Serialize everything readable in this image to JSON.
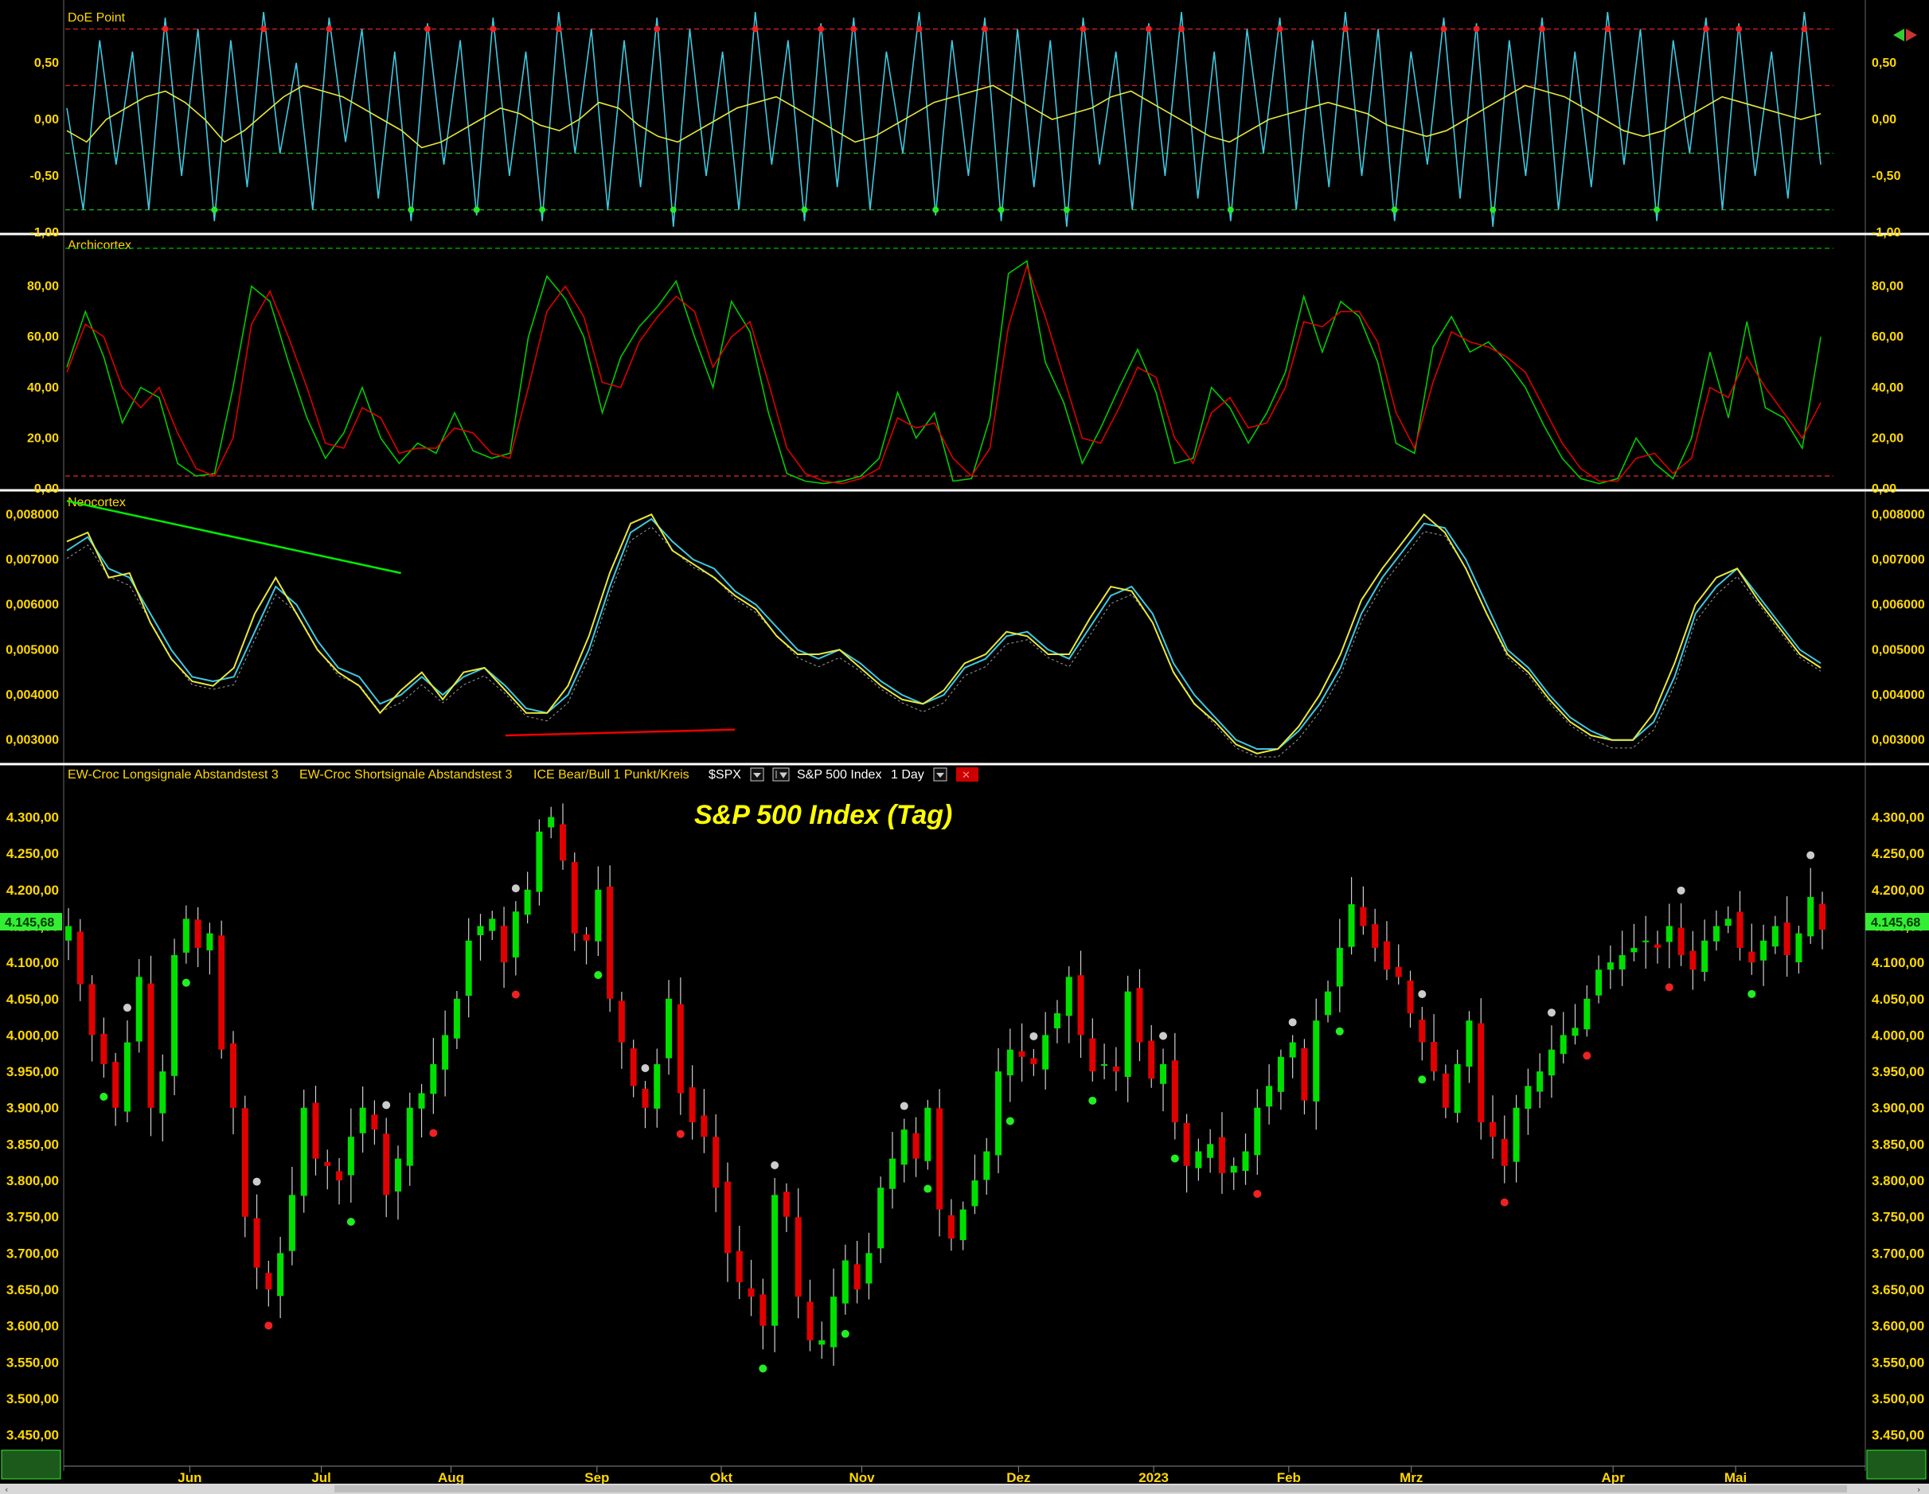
{
  "colors": {
    "background": "#000000",
    "axis_text": "#ffd800",
    "bull": "#00e000",
    "bear": "#e00000",
    "separator": "#ffffff",
    "cyan": "#3fc8e0",
    "yellow": "#e8e83a",
    "price_tag": "#33ee33"
  },
  "toolbar": {
    "series_label": "EW-Croc Longsignale Abstandstest 3",
    "short_label": "EW-Croc Shortsignale Abstandstest 3",
    "ice_label": "ICE Bear/Bull 1 Punkt/Kreis",
    "symbol": "$SPX",
    "symbol_name": "S&P 500 Index",
    "interval": "1 Day"
  },
  "chart_data": [
    {
      "type": "line",
      "title": "DoE Point",
      "ylim": [
        -1.0,
        1.0
      ],
      "yticks": [
        "0,50",
        "0,00",
        "-0,50",
        "-1,00"
      ],
      "ytick_values": [
        0.5,
        0.0,
        -0.5,
        -1.0
      ],
      "ref_lines": [
        0.8,
        0.3,
        -0.3,
        -0.8
      ],
      "series": [
        {
          "color": "#3fc8e0",
          "values": [
            0.1,
            -0.8,
            0.7,
            -0.4,
            0.6,
            -0.8,
            0.9,
            -0.5,
            0.8,
            -0.9,
            0.7,
            -0.6,
            0.95,
            -0.3,
            0.5,
            -0.8,
            0.9,
            -0.2,
            0.8,
            -0.7,
            0.6,
            -0.9,
            0.85,
            -0.4,
            0.7,
            -0.85,
            0.9,
            -0.5,
            0.6,
            -0.9,
            0.95,
            -0.3,
            0.8,
            -0.8,
            0.7,
            -0.6,
            0.9,
            -0.95,
            0.8,
            -0.5,
            0.6,
            -0.8,
            0.95,
            -0.4,
            0.7,
            -0.9,
            0.85,
            -0.6,
            0.9,
            -0.8,
            0.6,
            -0.3,
            0.95,
            -0.85,
            0.7,
            -0.5,
            0.9,
            -0.9,
            0.8,
            -0.6,
            0.7,
            -0.95,
            0.9,
            -0.4,
            0.6,
            -0.8,
            0.85,
            -0.5,
            0.95,
            -0.7,
            0.6,
            -0.9,
            0.8,
            -0.3,
            0.9,
            -0.8,
            0.7,
            -0.6,
            0.95,
            -0.5,
            0.8,
            -0.9,
            0.6,
            -0.4,
            0.9,
            -0.7,
            0.85,
            -0.95,
            0.7,
            -0.5,
            0.9,
            -0.8,
            0.6,
            -0.6,
            0.95,
            -0.4,
            0.8,
            -0.9,
            0.7,
            -0.3,
            0.9,
            -0.8,
            0.85,
            -0.5,
            0.6,
            -0.7,
            0.95,
            -0.4
          ]
        },
        {
          "color": "#e8e83a",
          "values": [
            -0.1,
            -0.2,
            0.0,
            0.1,
            0.2,
            0.25,
            0.15,
            0.0,
            -0.2,
            -0.1,
            0.05,
            0.2,
            0.3,
            0.25,
            0.2,
            0.1,
            0.0,
            -0.1,
            -0.25,
            -0.2,
            -0.1,
            0.0,
            0.1,
            0.05,
            -0.05,
            -0.1,
            0.0,
            0.15,
            0.1,
            -0.05,
            -0.15,
            -0.2,
            -0.1,
            0.0,
            0.1,
            0.15,
            0.2,
            0.1,
            0.0,
            -0.1,
            -0.2,
            -0.15,
            -0.05,
            0.05,
            0.15,
            0.2,
            0.25,
            0.3,
            0.2,
            0.1,
            0.0,
            0.05,
            0.1,
            0.2,
            0.25,
            0.15,
            0.05,
            -0.05,
            -0.15,
            -0.2,
            -0.1,
            0.0,
            0.05,
            0.1,
            0.15,
            0.1,
            0.05,
            -0.05,
            -0.1,
            -0.15,
            -0.1,
            0.0,
            0.1,
            0.2,
            0.3,
            0.25,
            0.2,
            0.1,
            0.0,
            -0.1,
            -0.15,
            -0.1,
            0.0,
            0.1,
            0.2,
            0.15,
            0.1,
            0.05,
            0.0,
            0.05
          ]
        }
      ]
    },
    {
      "type": "line",
      "title": "Archicortex",
      "ylim": [
        0,
        100
      ],
      "yticks": [
        "80,00",
        "60,00",
        "40,00",
        "20,00",
        "0,00"
      ],
      "ytick_values": [
        80,
        60,
        40,
        20,
        0
      ],
      "ref_lines": [
        95,
        5
      ],
      "series": [
        {
          "color": "#00cc00",
          "values": [
            48,
            70,
            52,
            26,
            40,
            36,
            10,
            5,
            6,
            40,
            80,
            74,
            50,
            28,
            12,
            22,
            40,
            20,
            10,
            18,
            14,
            30,
            15,
            12,
            14,
            60,
            84,
            75,
            60,
            30,
            52,
            64,
            72,
            82,
            60,
            40,
            74,
            62,
            30,
            6,
            3,
            2,
            3,
            5,
            12,
            38,
            20,
            30,
            3,
            4,
            28,
            85,
            90,
            50,
            34,
            10,
            24,
            40,
            55,
            38,
            10,
            12,
            40,
            32,
            18,
            30,
            46,
            76,
            54,
            74,
            68,
            50,
            18,
            14,
            56,
            68,
            54,
            58,
            50,
            40,
            25,
            12,
            4,
            2,
            4,
            20,
            10,
            4,
            20,
            54,
            28,
            66,
            32,
            28,
            16,
            60
          ]
        },
        {
          "color": "#dd0000",
          "values": [
            46,
            65,
            60,
            40,
            32,
            40,
            22,
            8,
            5,
            20,
            65,
            78,
            60,
            40,
            18,
            16,
            32,
            28,
            14,
            16,
            16,
            24,
            22,
            14,
            12,
            40,
            70,
            80,
            68,
            42,
            40,
            58,
            68,
            76,
            70,
            48,
            60,
            66,
            42,
            16,
            6,
            3,
            2,
            4,
            8,
            28,
            24,
            26,
            12,
            5,
            16,
            64,
            88,
            68,
            44,
            20,
            18,
            32,
            48,
            44,
            20,
            10,
            30,
            36,
            24,
            26,
            40,
            66,
            64,
            70,
            70,
            58,
            30,
            16,
            42,
            62,
            58,
            56,
            52,
            46,
            32,
            18,
            8,
            3,
            3,
            12,
            14,
            6,
            12,
            40,
            36,
            52,
            40,
            30,
            20,
            34
          ]
        }
      ]
    },
    {
      "type": "line",
      "title": "Neocortex",
      "ylim": [
        0.0025,
        0.0085
      ],
      "yticks": [
        "0,008000",
        "0,007000",
        "0,006000",
        "0,005000",
        "0,004000",
        "0,003000"
      ],
      "ytick_values": [
        0.008,
        0.007,
        0.006,
        0.005,
        0.004,
        0.003
      ],
      "trendlines": [
        {
          "color": "#00ee00",
          "from": [
            0,
            0.0083
          ],
          "to": [
            16,
            0.0067
          ]
        },
        {
          "color": "#ee0000",
          "from": [
            21,
            0.0031
          ],
          "to": [
            32,
            0.00323
          ]
        }
      ],
      "series": [
        {
          "color": "#3fc8e0",
          "values": [
            0.0072,
            0.0075,
            0.0068,
            0.0066,
            0.0058,
            0.005,
            0.0044,
            0.0043,
            0.0044,
            0.0054,
            0.0064,
            0.006,
            0.0052,
            0.0046,
            0.0044,
            0.0038,
            0.004,
            0.0044,
            0.004,
            0.0044,
            0.0046,
            0.0042,
            0.0037,
            0.0036,
            0.004,
            0.005,
            0.0064,
            0.0076,
            0.0079,
            0.0074,
            0.007,
            0.0068,
            0.0063,
            0.006,
            0.0055,
            0.005,
            0.0048,
            0.005,
            0.0047,
            0.0043,
            0.004,
            0.0038,
            0.004,
            0.0046,
            0.0048,
            0.0053,
            0.0054,
            0.005,
            0.0048,
            0.0055,
            0.0062,
            0.0064,
            0.0058,
            0.0047,
            0.004,
            0.0035,
            0.003,
            0.0028,
            0.0028,
            0.0032,
            0.0038,
            0.0046,
            0.0058,
            0.0066,
            0.0072,
            0.0078,
            0.0077,
            0.007,
            0.006,
            0.005,
            0.0046,
            0.004,
            0.0035,
            0.0032,
            0.003,
            0.003,
            0.0034,
            0.0044,
            0.0058,
            0.0064,
            0.0068,
            0.0062,
            0.0056,
            0.005,
            0.0047
          ]
        },
        {
          "color": "#e8e83a",
          "values": [
            0.0074,
            0.0076,
            0.0066,
            0.0067,
            0.0056,
            0.0048,
            0.0043,
            0.0042,
            0.0046,
            0.0058,
            0.0066,
            0.0058,
            0.005,
            0.0045,
            0.0042,
            0.0036,
            0.0041,
            0.0045,
            0.0039,
            0.0045,
            0.0046,
            0.0041,
            0.0036,
            0.0036,
            0.0042,
            0.0053,
            0.0067,
            0.0078,
            0.008,
            0.0072,
            0.0069,
            0.0066,
            0.0062,
            0.0059,
            0.0053,
            0.0049,
            0.0049,
            0.005,
            0.0046,
            0.0042,
            0.0039,
            0.0038,
            0.0041,
            0.0047,
            0.0049,
            0.0054,
            0.0053,
            0.0049,
            0.0049,
            0.0057,
            0.0064,
            0.0063,
            0.0056,
            0.0045,
            0.0038,
            0.0034,
            0.0029,
            0.0027,
            0.0028,
            0.0033,
            0.004,
            0.0049,
            0.0061,
            0.0068,
            0.0074,
            0.008,
            0.0076,
            0.0068,
            0.0058,
            0.0049,
            0.0045,
            0.0039,
            0.0034,
            0.0031,
            0.003,
            0.003,
            0.0036,
            0.0047,
            0.006,
            0.0066,
            0.0068,
            0.0061,
            0.0055,
            0.0049,
            0.0046
          ]
        }
      ]
    },
    {
      "type": "candlestick",
      "title": "S&P 500 Index (Tag)",
      "ylim": [
        3420,
        4340
      ],
      "yticks": [
        "4.300,00",
        "4.250,00",
        "4.200,00",
        "4.150,00",
        "4.100,00",
        "4.050,00",
        "4.000,00",
        "3.950,00",
        "3.900,00",
        "3.850,00",
        "3.800,00",
        "3.750,00",
        "3.700,00",
        "3.650,00",
        "3.600,00",
        "3.550,00",
        "3.500,00",
        "3.450,00"
      ],
      "ytick_values": [
        4300,
        4250,
        4200,
        4150,
        4100,
        4050,
        4000,
        3950,
        3900,
        3850,
        3800,
        3750,
        3700,
        3650,
        3600,
        3550,
        3500,
        3450
      ],
      "last_price": "4.145,68",
      "last_value": 4145.68,
      "x_labels": [
        "Jun",
        "Jul",
        "Aug",
        "Sep",
        "Okt",
        "Nov",
        "Dez",
        "2023",
        "Feb",
        "Mrz",
        "Apr",
        "Mai"
      ],
      "x_label_positions": [
        0.07,
        0.143,
        0.215,
        0.296,
        0.365,
        0.443,
        0.53,
        0.605,
        0.68,
        0.748,
        0.86,
        0.928
      ],
      "closes": [
        4150,
        4070,
        4000,
        3960,
        3900,
        3990,
        4080,
        3900,
        3950,
        4110,
        4160,
        4120,
        4140,
        3980,
        3900,
        3750,
        3680,
        3650,
        3700,
        3780,
        3900,
        3830,
        3820,
        3800,
        3860,
        3900,
        3870,
        3780,
        3830,
        3900,
        3920,
        3960,
        4000,
        4050,
        4130,
        4150,
        4160,
        4100,
        4170,
        4200,
        4280,
        4300,
        4240,
        4140,
        4130,
        4200,
        4050,
        3990,
        3930,
        3900,
        3960,
        4050,
        3920,
        3880,
        3860,
        3790,
        3700,
        3660,
        3640,
        3600,
        3780,
        3750,
        3640,
        3580,
        3580,
        3640,
        3690,
        3650,
        3700,
        3790,
        3830,
        3870,
        3830,
        3900,
        3760,
        3720,
        3760,
        3800,
        3840,
        3950,
        3980,
        3970,
        3960,
        4000,
        4030,
        4080,
        4000,
        3950,
        3960,
        3950,
        4060,
        3990,
        3940,
        3960,
        3880,
        3820,
        3840,
        3850,
        3810,
        3820,
        3840,
        3900,
        3930,
        3970,
        3990,
        3910,
        4020,
        4060,
        4120,
        4180,
        4150,
        4120,
        4090,
        4080,
        4030,
        3990,
        3950,
        3900,
        3960,
        4020,
        3880,
        3860,
        3820,
        3900,
        3930,
        3950,
        3980,
        4000,
        4010,
        4050,
        4090,
        4100,
        4110,
        4120,
        4130,
        4120,
        4150,
        4110,
        4090,
        4130,
        4150,
        4160,
        4120,
        4100,
        4130,
        4150,
        4110,
        4140,
        4190,
        4145
      ]
    }
  ]
}
